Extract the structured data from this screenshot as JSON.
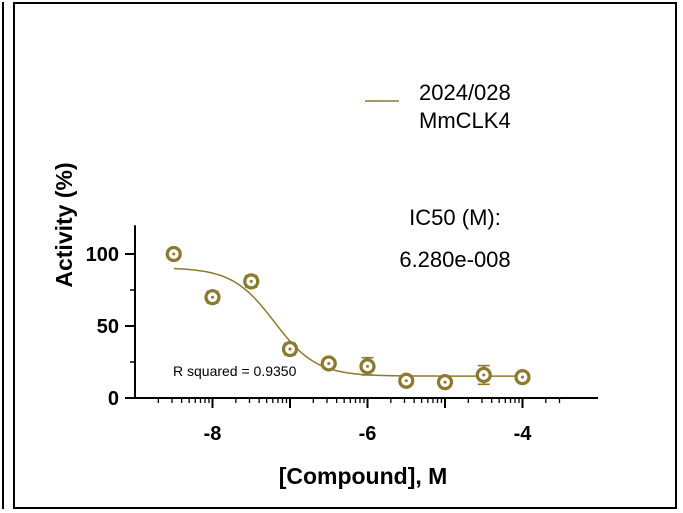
{
  "chart_data": {
    "type": "scatter",
    "xlabel": "[Compound], M",
    "ylabel": "Activity (%)",
    "x_ticks": [
      -8,
      -6,
      -4
    ],
    "y_ticks": [
      0,
      50,
      100
    ],
    "xlim": [
      -9.0,
      -3.5
    ],
    "ylim": [
      0,
      120
    ],
    "legend": {
      "placement": "top-right",
      "lines": [
        "2024/028",
        "MmCLK4"
      ],
      "color": "#8B7A2E"
    },
    "series": [
      {
        "name": "2024/028 MmCLK4",
        "color": "#8B7A2E",
        "points": [
          {
            "x": -8.5,
            "y": 100,
            "err": 0
          },
          {
            "x": -8.0,
            "y": 70,
            "err": 4
          },
          {
            "x": -7.5,
            "y": 81,
            "err": 4
          },
          {
            "x": -7.0,
            "y": 34,
            "err": 4
          },
          {
            "x": -6.5,
            "y": 24,
            "err": 1
          },
          {
            "x": -6.0,
            "y": 22,
            "err": 6
          },
          {
            "x": -5.5,
            "y": 12,
            "err": 1
          },
          {
            "x": -5.0,
            "y": 11,
            "err": 0
          },
          {
            "x": -4.5,
            "y": 16,
            "err": 6.5
          },
          {
            "x": -4.0,
            "y": 14.5,
            "err": 1
          }
        ],
        "fit": {
          "top": 90.5,
          "bottom": 15.2,
          "log_ic50": -7.202,
          "hill": -1.6,
          "x_range": [
            -8.5,
            -4.0
          ]
        }
      }
    ],
    "annotations": {
      "ic50_label": "IC50 (M):",
      "ic50_value": "6.280e-008",
      "r_squared": "R squared = 0.9350"
    }
  }
}
